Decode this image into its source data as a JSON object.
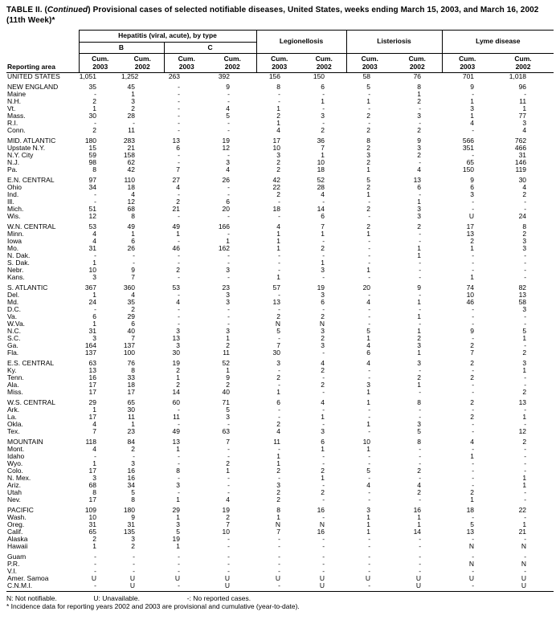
{
  "colors": {
    "ink": "#000000",
    "paper": "#ffffff"
  },
  "title": {
    "prefix": "TABLE II. (",
    "continued": "Continued",
    "rest": ") Provisional cases of selected notifiable diseases, United States, weeks ending March 15, 2003, and March 16, 2002 (11th Week)*"
  },
  "header": {
    "reporting_area": "Reporting area",
    "hepatitis_group": "Hepatitis (viral, acute), by type",
    "subgroups": [
      "B",
      "C"
    ],
    "diseases": [
      "Legionellosis",
      "Listeriosis",
      "Lyme disease"
    ],
    "cum_columns": [
      {
        "line1": "Cum.",
        "line2": "2003"
      },
      {
        "line1": "Cum.",
        "line2": "2002"
      },
      {
        "line1": "Cum.",
        "line2": "2003"
      },
      {
        "line1": "Cum.",
        "line2": "2002"
      },
      {
        "line1": "Cum.",
        "line2": "2003"
      },
      {
        "line1": "Cum.",
        "line2": "2002"
      },
      {
        "line1": "Cum.",
        "line2": "2003"
      },
      {
        "line1": "Cum.",
        "line2": "2002"
      },
      {
        "line1": "Cum.",
        "line2": "2003"
      },
      {
        "line1": "Cum.",
        "line2": "2002"
      }
    ]
  },
  "rows": [
    {
      "area": "UNITED STATES",
      "values": [
        "1,051",
        "1,252",
        "263",
        "392",
        "156",
        "150",
        "58",
        "76",
        "701",
        "1,018"
      ]
    },
    {
      "area": "NEW ENGLAND",
      "gap": true,
      "values": [
        "35",
        "45",
        "-",
        "9",
        "8",
        "6",
        "5",
        "8",
        "9",
        "96"
      ]
    },
    {
      "area": "Maine",
      "values": [
        "-",
        "1",
        "-",
        "-",
        "-",
        "-",
        "-",
        "1",
        "-",
        "-"
      ]
    },
    {
      "area": "N.H.",
      "values": [
        "2",
        "3",
        "-",
        "-",
        "-",
        "1",
        "1",
        "2",
        "1",
        "11"
      ]
    },
    {
      "area": "Vt.",
      "values": [
        "1",
        "2",
        "-",
        "4",
        "1",
        "-",
        "-",
        "-",
        "3",
        "1"
      ]
    },
    {
      "area": "Mass.",
      "values": [
        "30",
        "28",
        "-",
        "5",
        "2",
        "3",
        "2",
        "3",
        "1",
        "77"
      ]
    },
    {
      "area": "R.I.",
      "values": [
        "-",
        "-",
        "-",
        "-",
        "1",
        "-",
        "-",
        "-",
        "4",
        "3"
      ]
    },
    {
      "area": "Conn.",
      "values": [
        "2",
        "11",
        "-",
        "-",
        "4",
        "2",
        "2",
        "2",
        "-",
        "4"
      ]
    },
    {
      "area": "MID. ATLANTIC",
      "gap": true,
      "values": [
        "180",
        "283",
        "13",
        "19",
        "17",
        "36",
        "8",
        "9",
        "566",
        "762"
      ]
    },
    {
      "area": "Upstate N.Y.",
      "values": [
        "15",
        "21",
        "6",
        "12",
        "10",
        "7",
        "2",
        "3",
        "351",
        "466"
      ]
    },
    {
      "area": "N.Y. City",
      "values": [
        "59",
        "158",
        "-",
        "-",
        "3",
        "1",
        "3",
        "2",
        "-",
        "31"
      ]
    },
    {
      "area": "N.J.",
      "values": [
        "98",
        "62",
        "-",
        "3",
        "2",
        "10",
        "2",
        "-",
        "65",
        "146"
      ]
    },
    {
      "area": "Pa.",
      "values": [
        "8",
        "42",
        "7",
        "4",
        "2",
        "18",
        "1",
        "4",
        "150",
        "119"
      ]
    },
    {
      "area": "E.N. CENTRAL",
      "gap": true,
      "values": [
        "97",
        "110",
        "27",
        "26",
        "42",
        "52",
        "5",
        "13",
        "9",
        "30"
      ]
    },
    {
      "area": "Ohio",
      "values": [
        "34",
        "18",
        "4",
        "-",
        "22",
        "28",
        "2",
        "6",
        "6",
        "4"
      ]
    },
    {
      "area": "Ind.",
      "values": [
        "-",
        "4",
        "-",
        "-",
        "2",
        "4",
        "1",
        "-",
        "3",
        "2"
      ]
    },
    {
      "area": "Ill.",
      "values": [
        "-",
        "12",
        "2",
        "6",
        "-",
        "-",
        "-",
        "1",
        "-",
        "-"
      ]
    },
    {
      "area": "Mich.",
      "values": [
        "51",
        "68",
        "21",
        "20",
        "18",
        "14",
        "2",
        "3",
        "-",
        "-"
      ]
    },
    {
      "area": "Wis.",
      "values": [
        "12",
        "8",
        "-",
        "-",
        "-",
        "6",
        "-",
        "3",
        "U",
        "24"
      ]
    },
    {
      "area": "W.N. CENTRAL",
      "gap": true,
      "values": [
        "53",
        "49",
        "49",
        "166",
        "4",
        "7",
        "2",
        "2",
        "17",
        "8"
      ]
    },
    {
      "area": "Minn.",
      "values": [
        "4",
        "1",
        "1",
        "-",
        "1",
        "1",
        "1",
        "-",
        "13",
        "2"
      ]
    },
    {
      "area": "Iowa",
      "values": [
        "4",
        "6",
        "-",
        "1",
        "1",
        "-",
        "-",
        "-",
        "2",
        "3"
      ]
    },
    {
      "area": "Mo.",
      "values": [
        "31",
        "26",
        "46",
        "162",
        "1",
        "2",
        "-",
        "1",
        "1",
        "3"
      ]
    },
    {
      "area": "N. Dak.",
      "values": [
        "-",
        "-",
        "-",
        "-",
        "-",
        "-",
        "-",
        "1",
        "-",
        "-"
      ]
    },
    {
      "area": "S. Dak.",
      "values": [
        "1",
        "-",
        "-",
        "-",
        "-",
        "1",
        "-",
        "-",
        "-",
        "-"
      ]
    },
    {
      "area": "Nebr.",
      "values": [
        "10",
        "9",
        "2",
        "3",
        "-",
        "3",
        "1",
        "-",
        "-",
        "-"
      ]
    },
    {
      "area": "Kans.",
      "values": [
        "3",
        "7",
        "-",
        "-",
        "1",
        "-",
        "-",
        "-",
        "1",
        "-"
      ]
    },
    {
      "area": "S. ATLANTIC",
      "gap": true,
      "values": [
        "367",
        "360",
        "53",
        "23",
        "57",
        "19",
        "20",
        "9",
        "74",
        "82"
      ]
    },
    {
      "area": "Del.",
      "values": [
        "1",
        "4",
        "-",
        "3",
        "-",
        "3",
        "-",
        "-",
        "10",
        "13"
      ]
    },
    {
      "area": "Md.",
      "values": [
        "24",
        "35",
        "4",
        "3",
        "13",
        "6",
        "4",
        "1",
        "46",
        "58"
      ]
    },
    {
      "area": "D.C.",
      "values": [
        "-",
        "2",
        "-",
        "-",
        "-",
        "-",
        "-",
        "-",
        "-",
        "3"
      ]
    },
    {
      "area": "Va.",
      "values": [
        "6",
        "29",
        "-",
        "-",
        "2",
        "2",
        "-",
        "1",
        "-",
        "-"
      ]
    },
    {
      "area": "W.Va.",
      "values": [
        "1",
        "6",
        "-",
        "-",
        "N",
        "N",
        "-",
        "-",
        "-",
        "-"
      ]
    },
    {
      "area": "N.C.",
      "values": [
        "31",
        "40",
        "3",
        "3",
        "5",
        "3",
        "5",
        "1",
        "9",
        "5"
      ]
    },
    {
      "area": "S.C.",
      "values": [
        "3",
        "7",
        "13",
        "1",
        "-",
        "2",
        "1",
        "2",
        "-",
        "1"
      ]
    },
    {
      "area": "Ga.",
      "values": [
        "164",
        "137",
        "3",
        "2",
        "7",
        "3",
        "4",
        "3",
        "2",
        "-"
      ]
    },
    {
      "area": "Fla.",
      "values": [
        "137",
        "100",
        "30",
        "11",
        "30",
        "-",
        "6",
        "1",
        "7",
        "2"
      ]
    },
    {
      "area": "E.S. CENTRAL",
      "gap": true,
      "values": [
        "63",
        "76",
        "19",
        "52",
        "3",
        "4",
        "4",
        "3",
        "2",
        "3"
      ]
    },
    {
      "area": "Ky.",
      "values": [
        "13",
        "8",
        "2",
        "1",
        "-",
        "2",
        "-",
        "-",
        "-",
        "1"
      ]
    },
    {
      "area": "Tenn.",
      "values": [
        "16",
        "33",
        "1",
        "9",
        "2",
        "-",
        "-",
        "2",
        "2",
        "-"
      ]
    },
    {
      "area": "Ala.",
      "values": [
        "17",
        "18",
        "2",
        "2",
        "-",
        "2",
        "3",
        "1",
        "-",
        "-"
      ]
    },
    {
      "area": "Miss.",
      "values": [
        "17",
        "17",
        "14",
        "40",
        "1",
        "-",
        "1",
        "-",
        "-",
        "2"
      ]
    },
    {
      "area": "W.S. CENTRAL",
      "gap": true,
      "values": [
        "29",
        "65",
        "60",
        "71",
        "6",
        "4",
        "1",
        "8",
        "2",
        "13"
      ]
    },
    {
      "area": "Ark.",
      "values": [
        "1",
        "30",
        "-",
        "5",
        "-",
        "-",
        "-",
        "-",
        "-",
        "-"
      ]
    },
    {
      "area": "La.",
      "values": [
        "17",
        "11",
        "11",
        "3",
        "-",
        "1",
        "-",
        "-",
        "2",
        "1"
      ]
    },
    {
      "area": "Okla.",
      "values": [
        "4",
        "1",
        "-",
        "-",
        "2",
        "-",
        "1",
        "3",
        "-",
        "-"
      ]
    },
    {
      "area": "Tex.",
      "values": [
        "7",
        "23",
        "49",
        "63",
        "4",
        "3",
        "-",
        "5",
        "-",
        "12"
      ]
    },
    {
      "area": "MOUNTAIN",
      "gap": true,
      "values": [
        "118",
        "84",
        "13",
        "7",
        "11",
        "6",
        "10",
        "8",
        "4",
        "2"
      ]
    },
    {
      "area": "Mont.",
      "values": [
        "4",
        "2",
        "1",
        "-",
        "-",
        "1",
        "1",
        "-",
        "-",
        "-"
      ]
    },
    {
      "area": "Idaho",
      "values": [
        "-",
        "-",
        "-",
        "-",
        "1",
        "-",
        "-",
        "-",
        "1",
        "-"
      ]
    },
    {
      "area": "Wyo.",
      "values": [
        "1",
        "3",
        "-",
        "2",
        "1",
        "-",
        "-",
        "-",
        "-",
        "-"
      ]
    },
    {
      "area": "Colo.",
      "values": [
        "17",
        "16",
        "8",
        "1",
        "2",
        "2",
        "5",
        "2",
        "-",
        "-"
      ]
    },
    {
      "area": "N. Mex.",
      "values": [
        "3",
        "16",
        "-",
        "-",
        "-",
        "1",
        "-",
        "-",
        "-",
        "1"
      ]
    },
    {
      "area": "Ariz.",
      "values": [
        "68",
        "34",
        "3",
        "-",
        "3",
        "-",
        "4",
        "4",
        "-",
        "1"
      ]
    },
    {
      "area": "Utah",
      "values": [
        "8",
        "5",
        "-",
        "-",
        "2",
        "2",
        "-",
        "2",
        "2",
        "-"
      ]
    },
    {
      "area": "Nev.",
      "values": [
        "17",
        "8",
        "1",
        "4",
        "2",
        "-",
        "-",
        "-",
        "1",
        "-"
      ]
    },
    {
      "area": "PACIFIC",
      "gap": true,
      "values": [
        "109",
        "180",
        "29",
        "19",
        "8",
        "16",
        "3",
        "16",
        "18",
        "22"
      ]
    },
    {
      "area": "Wash.",
      "values": [
        "10",
        "9",
        "1",
        "2",
        "1",
        "-",
        "1",
        "1",
        "-",
        "-"
      ]
    },
    {
      "area": "Oreg.",
      "values": [
        "31",
        "31",
        "3",
        "7",
        "N",
        "N",
        "1",
        "1",
        "5",
        "1"
      ]
    },
    {
      "area": "Calif.",
      "values": [
        "65",
        "135",
        "5",
        "10",
        "7",
        "16",
        "1",
        "14",
        "13",
        "21"
      ]
    },
    {
      "area": "Alaska",
      "values": [
        "2",
        "3",
        "19",
        "-",
        "-",
        "-",
        "-",
        "-",
        "-",
        "-"
      ]
    },
    {
      "area": "Hawaii",
      "values": [
        "1",
        "2",
        "1",
        "-",
        "-",
        "-",
        "-",
        "-",
        "N",
        "N"
      ]
    },
    {
      "area": "Guam",
      "gap": true,
      "values": [
        "-",
        "-",
        "-",
        "-",
        "-",
        "-",
        "-",
        "-",
        "-",
        "-"
      ]
    },
    {
      "area": "P.R.",
      "values": [
        "-",
        "-",
        "-",
        "-",
        "-",
        "-",
        "-",
        "-",
        "N",
        "N"
      ]
    },
    {
      "area": "V.I.",
      "values": [
        "-",
        "-",
        "-",
        "-",
        "-",
        "-",
        "-",
        "-",
        "-",
        "-"
      ]
    },
    {
      "area": "Amer. Samoa",
      "values": [
        "U",
        "U",
        "U",
        "U",
        "U",
        "U",
        "U",
        "U",
        "U",
        "U"
      ]
    },
    {
      "area": "C.N.M.I.",
      "values": [
        "-",
        "U",
        "-",
        "U",
        "-",
        "U",
        "-",
        "U",
        "-",
        "U"
      ]
    }
  ],
  "footnotes": {
    "n": "N: Not notifiable.",
    "u": "U: Unavailable.",
    "dash": "-: No reported cases.",
    "star": "* Incidence data for reporting years 2002 and 2003 are provisional and cumulative (year-to-date)."
  }
}
